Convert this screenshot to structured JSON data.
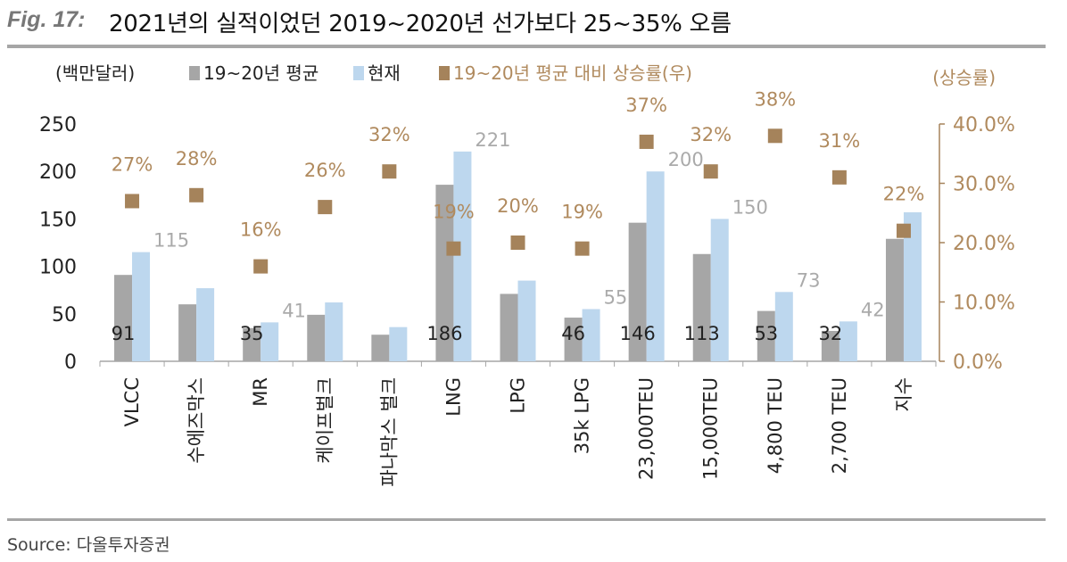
{
  "header": {
    "fig_label": "Fig. 17:",
    "title": "2021년의 실적이었던 2019~2020년 선가보다 25~35% 오름"
  },
  "footer": {
    "source": "Source:  다올투자증권"
  },
  "colors": {
    "avg": "#a6a6a6",
    "current": "#bdd7ee",
    "rate": "#a5835b",
    "rate_text": "#b08a5e",
    "value_text": "#aaaaaa",
    "axis": "#a6a6a6"
  },
  "chart_data": {
    "type": "bar",
    "categories": [
      "VLCC",
      "수에즈막스",
      "MR",
      "케이프벌크",
      "파나막스 벌크",
      "LNG",
      "LPG",
      "35k LPG",
      "23,000TEU",
      "15,000TEU",
      "4,800 TEU",
      "2,700 TEU",
      "지수"
    ],
    "series": [
      {
        "name": "19~20년 평균",
        "axis": "left",
        "values": [
          91,
          60,
          35,
          49,
          28,
          186,
          71,
          46,
          146,
          113,
          53,
          32,
          129
        ],
        "labels": [
          "91",
          "",
          "35",
          "",
          "",
          "186",
          "",
          "46",
          "146",
          "113",
          "53",
          "32",
          ""
        ]
      },
      {
        "name": "현재",
        "axis": "left",
        "values": [
          115,
          77,
          41,
          62,
          36,
          221,
          85,
          55,
          200,
          150,
          73,
          42,
          157
        ],
        "labels": [
          "115",
          "",
          "41",
          "",
          "",
          "221",
          "",
          "55",
          "200",
          "150",
          "73",
          "42",
          ""
        ]
      },
      {
        "name": "19~20년 평균 대비 상승률(우)",
        "type": "scatter",
        "axis": "right",
        "values": [
          0.27,
          0.28,
          0.16,
          0.26,
          0.32,
          0.19,
          0.2,
          0.19,
          0.37,
          0.32,
          0.38,
          0.31,
          0.22
        ],
        "labels": [
          "27%",
          "28%",
          "16%",
          "26%",
          "32%",
          "19%",
          "20%",
          "19%",
          "37%",
          "32%",
          "38%",
          "31%",
          "22%"
        ]
      }
    ],
    "y_left": {
      "label": "(백만달러)",
      "ylim": [
        0,
        250
      ],
      "ticks": [
        "0",
        "50",
        "100",
        "150",
        "200",
        "250"
      ]
    },
    "y_right": {
      "label": "(상승률)",
      "ylim": [
        0,
        0.4
      ],
      "ticks": [
        "0.0%",
        "10.0%",
        "20.0%",
        "30.0%",
        "40.0%"
      ]
    },
    "grid": false,
    "legend_position": "top"
  }
}
